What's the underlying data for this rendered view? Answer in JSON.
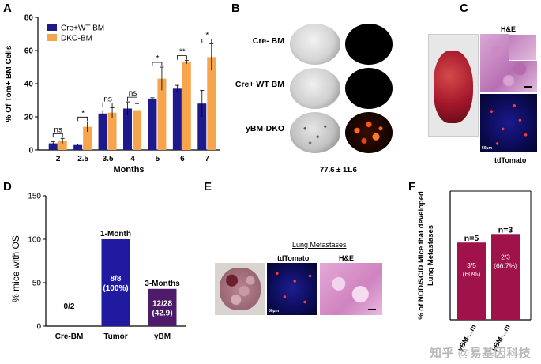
{
  "panels": {
    "a": {
      "letter": "A"
    },
    "b": {
      "letter": "B",
      "rows": [
        {
          "label": "Cre- BM"
        },
        {
          "label": "Cre+ WT BM"
        },
        {
          "label": "yBM-DKO"
        }
      ],
      "caption": "77.6 ± 11.6"
    },
    "c": {
      "letter": "C",
      "he_label": "H&E",
      "td_label": "tdTomato",
      "scale": "50μm"
    },
    "d": {
      "letter": "D"
    },
    "e": {
      "letter": "E",
      "title": "Lung Metastases",
      "td_label": "tdTomato",
      "he_label": "H&E",
      "scale": "50μm"
    },
    "f": {
      "letter": "F"
    }
  },
  "watermark": "知乎 @易基因科技",
  "colors": {
    "cre_wt": "#1f1a8c",
    "dko": "#f6a54c",
    "tumor": "#1f1aa0",
    "ybm": "#4e1a6a",
    "nod": "#a0134a"
  },
  "chart_data": [
    {
      "id": "A",
      "type": "bar",
      "ylabel": "% Of Tom+ BM Cells",
      "xlabel": "Months",
      "ylim": [
        0,
        80
      ],
      "yticks": [
        "0",
        "20",
        "40",
        "60",
        "80"
      ],
      "categories": [
        "2",
        "2.5",
        "3.5",
        "4",
        "5",
        "6",
        "7"
      ],
      "legend": [
        "Cre+WT BM",
        "DKO-BM"
      ],
      "series": [
        {
          "name": "Cre+WT BM",
          "values": [
            4,
            3,
            22,
            25,
            31,
            37,
            28
          ],
          "errors": [
            1,
            0.5,
            1.5,
            4,
            0.5,
            2,
            8
          ]
        },
        {
          "name": "DKO-BM",
          "values": [
            5.5,
            14,
            22.5,
            24,
            43,
            53,
            56
          ],
          "errors": [
            1.5,
            3,
            3,
            4,
            7,
            1,
            8
          ]
        }
      ],
      "significance": [
        "ns",
        "*",
        "ns",
        "ns",
        "*",
        "**",
        "*"
      ]
    },
    {
      "id": "D",
      "type": "bar",
      "ylabel": "% mice with OS",
      "ylim": [
        0,
        150
      ],
      "yticks": [
        "0",
        "50",
        "100",
        "150"
      ],
      "categories": [
        "Cre-BM",
        "Tumor",
        "yBM"
      ],
      "values": [
        0,
        100,
        42.9
      ],
      "top_labels": [
        "",
        "1-Month",
        "3-Months"
      ],
      "inner_labels": [
        [
          "0/2"
        ],
        [
          "8/8",
          "(100%)"
        ],
        [
          "12/28",
          "(42.9)"
        ]
      ]
    },
    {
      "id": "F",
      "type": "bar",
      "ylabel": [
        "% of NOD/SCID Mice that developed",
        "Lung Metastases"
      ],
      "ylim": [
        0,
        100
      ],
      "categories": [
        "yBM-...m",
        "yBM-...m"
      ],
      "values": [
        60,
        66.7
      ],
      "top_labels": [
        "n=5",
        "n=3"
      ],
      "inner_labels": [
        [
          "3/5",
          "(60%)"
        ],
        [
          "2/3",
          "(66.7%)"
        ]
      ]
    }
  ]
}
